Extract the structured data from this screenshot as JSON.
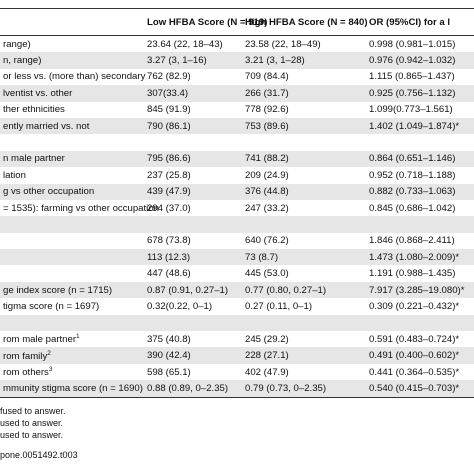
{
  "table": {
    "columns": [
      "Low HFBA Score (N = 919)",
      "High HFBA Score (N = 840)",
      "OR (95%CI) for a l"
    ],
    "rows": [
      {
        "label": "range)",
        "cells": [
          "23.64 (22, 18–43)",
          "23.58 (22, 18–49)",
          "0.998 (0.981–1.015)"
        ]
      },
      {
        "label": "n, range)",
        "cells": [
          "3.27 (3, 1–16)",
          "3.21 (3, 1–28)",
          "0.976 (0.942–1.032)"
        ]
      },
      {
        "label": "or less vs. (more than) secondary",
        "cells": [
          "762 (82.9)",
          "709 (84.4)",
          "1.115 (0.865–1.437)"
        ]
      },
      {
        "label": "lventist vs. other",
        "cells": [
          "307(33.4)",
          "266 (31.7)",
          "0.925 (0.756–1.132)"
        ]
      },
      {
        "label": "ther ethnicities",
        "cells": [
          "845 (91.9)",
          "778 (92.6)",
          "1.099(0.773–1.561)"
        ]
      },
      {
        "label": "ently married vs. not",
        "cells": [
          "790 (86.1)",
          "753 (89.6)",
          "1.402 (1.049–1.874)*"
        ]
      },
      {},
      {
        "label": "n male partner",
        "cells": [
          "795 (86.6)",
          "741 (88.2)",
          "0.864 (0.651–1.146)"
        ]
      },
      {
        "label": "lation",
        "cells": [
          "237 (25.8)",
          "209 (24.9)",
          "0.952 (0.718–1.188)"
        ]
      },
      {
        "label": "g vs other occupation",
        "cells": [
          "439 (47.9)",
          "376 (44.8)",
          "0.882 (0.733–1.063)"
        ]
      },
      {
        "label": "= 1535): farming vs other occupation",
        "cells": [
          "294 (37.0)",
          "247 (33.2)",
          "0.845 (0.686–1.042)"
        ]
      },
      {},
      {
        "cells": [
          "678 (73.8)",
          "640 (76.2)",
          "1.846 (0.868–2.411)"
        ]
      },
      {
        "cells": [
          "113 (12.3)",
          "73 (8.7)",
          "1.473 (1.080–2.009)*"
        ]
      },
      {
        "cells": [
          "447 (48.6)",
          "445 (53.0)",
          "1.191 (0.988–1.435)"
        ]
      },
      {
        "label": "ge index score (n = 1715)",
        "cells": [
          "0.87 (0.91, 0.27–1)",
          "0.77 (0.80, 0.27–1)",
          "7.917 (3.285–19.080)*"
        ]
      },
      {
        "label": "tigma score (n = 1697)",
        "cells": [
          "0.32(0.22, 0–1)",
          "0.27 (0.11, 0–1)",
          "0.309 (0.221–0.432)*"
        ]
      },
      {},
      {
        "label": "rom male partner",
        "note": "1",
        "cells": [
          "375 (40.8)",
          "245 (29.2)",
          "0.591 (0.483–0.724)*"
        ]
      },
      {
        "label": "rom family",
        "note": "2",
        "cells": [
          "390 (42.4)",
          "228 (27.1)",
          "0.491 (0.400–0.602)*"
        ]
      },
      {
        "label": "rom others",
        "note": "3",
        "cells": [
          "598 (65.1)",
          "402 (47.9)",
          "0.441 (0.364–0.535)*"
        ]
      },
      {
        "label": "mmunity stigma score (n = 1690)",
        "cells": [
          "0.88 (0.89, 0–2.35)",
          "0.79 (0.73, 0–2.35)",
          "0.540 (0.415–0.703)*"
        ]
      }
    ],
    "footnotes": [
      "fused to answer.",
      "used to answer.",
      "used to answer."
    ],
    "doi": "pone.0051492.t003"
  }
}
